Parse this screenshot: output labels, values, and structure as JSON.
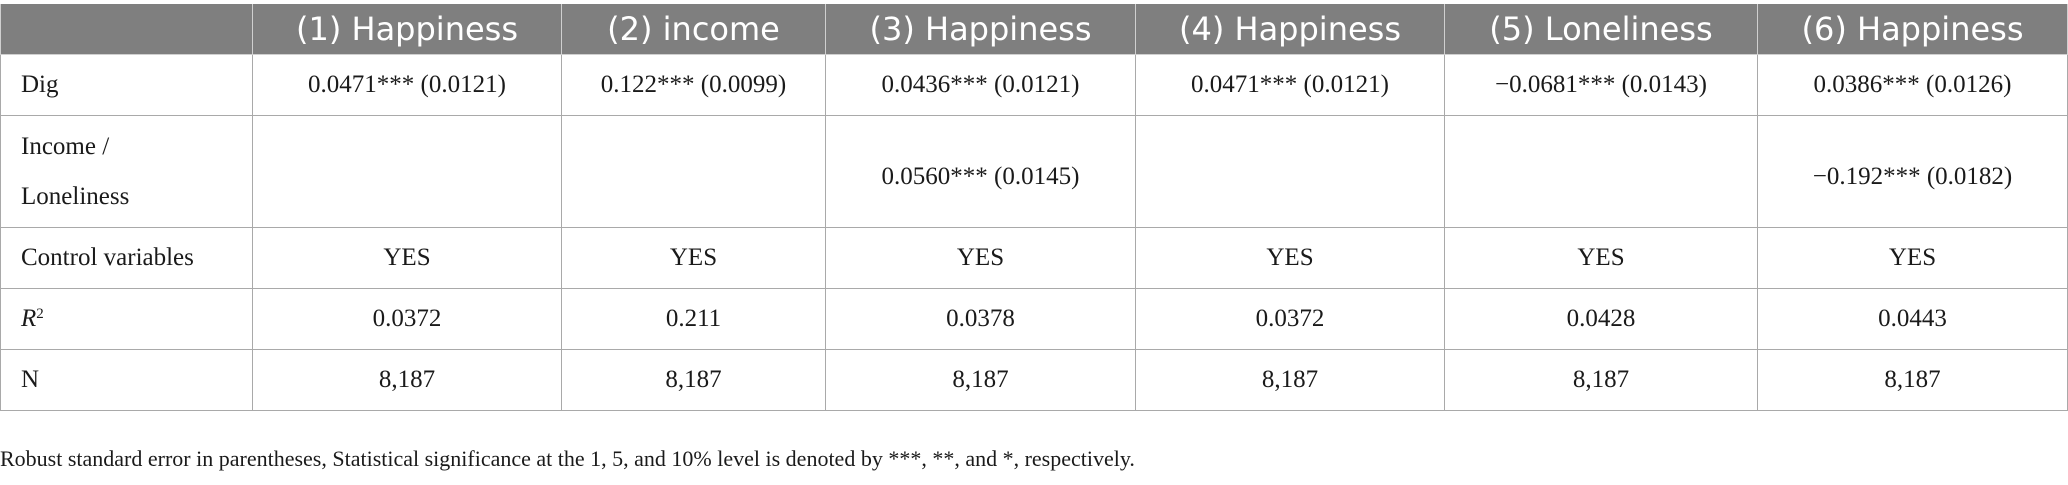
{
  "table": {
    "headers": [
      "",
      "(1) Happiness",
      "(2) income",
      "(3) Happiness",
      "(4) Happiness",
      "(5) Loneliness",
      "(6) Happiness"
    ],
    "rows": [
      {
        "label": "Dig",
        "cells": [
          "0.0471*** (0.0121)",
          "0.122*** (0.0099)",
          "0.0436*** (0.0121)",
          "0.0471*** (0.0121)",
          "−0.0681*** (0.0143)",
          "0.0386*** (0.0126)"
        ]
      },
      {
        "label_line1": "Income /",
        "label_line2": "Loneliness",
        "cells": [
          "",
          "",
          "0.0560*** (0.0145)",
          "",
          "",
          "−0.192*** (0.0182)"
        ]
      },
      {
        "label": "Control variables",
        "cells": [
          "YES",
          "YES",
          "YES",
          "YES",
          "YES",
          "YES"
        ]
      },
      {
        "label_main": "R",
        "label_sup": "2",
        "cells": [
          "0.0372",
          "0.211",
          "0.0378",
          "0.0372",
          "0.0428",
          "0.0443"
        ]
      },
      {
        "label": "N",
        "cells": [
          "8,187",
          "8,187",
          "8,187",
          "8,187",
          "8,187",
          "8,187"
        ]
      }
    ]
  },
  "footnote": "Robust standard error in parentheses, Statistical significance at the 1, 5, and 10% level is denoted by ***, **, and *, respectively.",
  "colors": {
    "header_bg": "#7f7f7f",
    "header_text": "#ffffff",
    "border": "#a9a9a9",
    "text": "#1a1a1a"
  }
}
